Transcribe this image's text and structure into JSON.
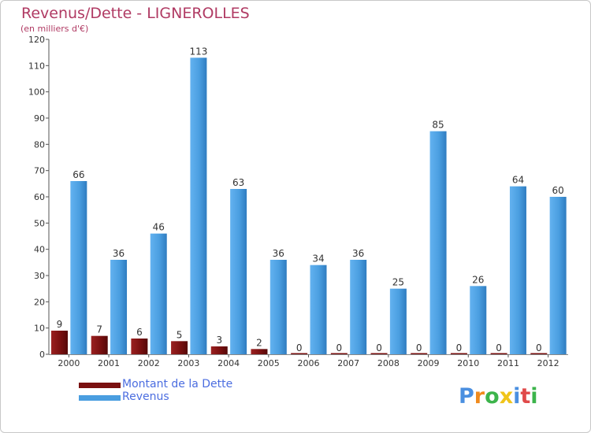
{
  "header": {
    "title": "Revenus/Dette - LIGNEROLLES",
    "subtitle": "(en milliers d'€)"
  },
  "legend": {
    "items": [
      {
        "label": "Montant de la Dette",
        "color": "#7a1010"
      },
      {
        "label": "Revenus",
        "color": "#4a9ee0"
      }
    ]
  },
  "logo": {
    "text": "Proxiti"
  },
  "chart_data": {
    "type": "bar",
    "categories": [
      "2000",
      "2001",
      "2002",
      "2003",
      "2004",
      "2005",
      "2006",
      "2007",
      "2008",
      "2009",
      "2010",
      "2011",
      "2012"
    ],
    "series": [
      {
        "name": "Montant de la Dette",
        "color": "#7a1010",
        "values": [
          9,
          7,
          6,
          5,
          3,
          2,
          0,
          0,
          0,
          0,
          0,
          0,
          0
        ]
      },
      {
        "name": "Revenus",
        "color": "#4a9ee0",
        "values": [
          66,
          36,
          46,
          113,
          63,
          36,
          34,
          36,
          25,
          85,
          26,
          64,
          60
        ]
      }
    ],
    "title": "Revenus/Dette - LIGNEROLLES",
    "ylabel": "(en milliers d'€)",
    "ylim": [
      0,
      120
    ],
    "yticks": [
      0,
      10,
      20,
      30,
      40,
      50,
      60,
      70,
      80,
      90,
      100,
      110,
      120
    ],
    "grid": false,
    "legend_position": "bottom-left"
  }
}
